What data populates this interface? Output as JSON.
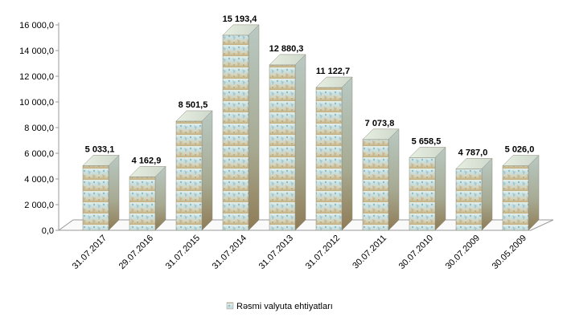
{
  "chart_data": {
    "type": "bar",
    "categories": [
      "31.07.2017",
      "29.07.2016",
      "31.07.2015",
      "31.07.2014",
      "31.07.2013",
      "31.07.2012",
      "30.07.2011",
      "30.07.2010",
      "30.07.2009",
      "30.05.2009"
    ],
    "series": [
      {
        "name": "Rəsmi valyuta ehtiyatları",
        "values": [
          5033.1,
          4162.9,
          8501.5,
          15193.4,
          12880.3,
          11122.7,
          7073.8,
          5658.5,
          4787.0,
          5026.0
        ]
      }
    ],
    "data_labels": [
      "5 033,1",
      "4 162,9",
      "8 501,5",
      "15 193,4",
      "12 880,3",
      "11 122,7",
      "7 073,8",
      "5 658,5",
      "4 787,0",
      "5 026,0"
    ],
    "ylim": [
      0,
      16000
    ],
    "yticks": [
      0,
      2000,
      4000,
      6000,
      8000,
      10000,
      12000,
      14000,
      16000
    ],
    "ytick_labels": [
      "0,0",
      "2 000,0",
      "4 000,0",
      "6 000,0",
      "8 000,0",
      "10 000,0",
      "12 000,0",
      "14 000,0",
      "16 000,0"
    ],
    "grid": false,
    "legend_position": "bottom",
    "style": "3d-textured-bars"
  },
  "legend": {
    "label": "Rəsmi valyuta ehtiyatları"
  }
}
